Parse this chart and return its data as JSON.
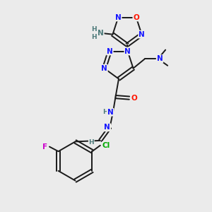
{
  "bg_color": "#ebebeb",
  "bond_color": "#1a1a1a",
  "N_color": "#1515ff",
  "O_color": "#ff1500",
  "F_color": "#cc00cc",
  "Cl_color": "#00aa00",
  "H_color": "#4d7a7a",
  "font_size": 7.5,
  "bond_lw": 1.4,
  "fig_w": 3.0,
  "fig_h": 3.0,
  "dpi": 100,
  "xlim": [
    0,
    10
  ],
  "ylim": [
    0,
    10
  ]
}
